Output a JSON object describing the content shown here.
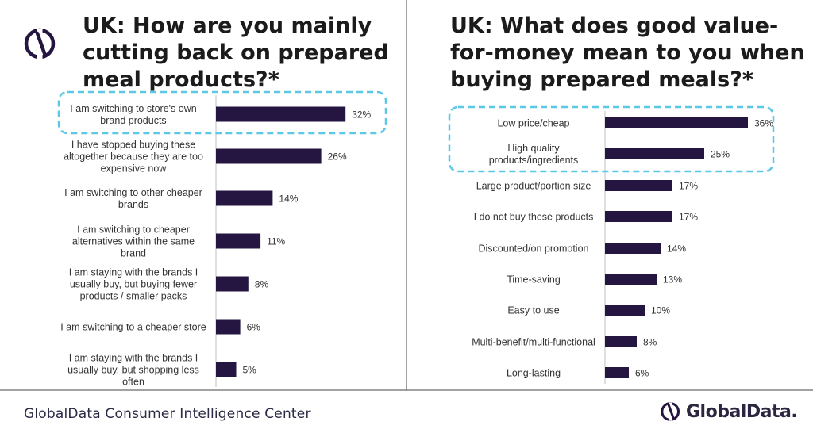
{
  "left_title": "UK: How are you mainly cutting back on prepared meal products?*",
  "right_title": "UK: What does good value-for-money mean to you when buying prepared meals?*",
  "footer": "GlobalData Consumer Intelligence Center",
  "brand": "GlobalData.",
  "colors": {
    "bar": "#241640",
    "highlight": "#5bc8e6",
    "divider": "#444444"
  },
  "icons": {
    "top_logo": "globaldata-logo-icon",
    "footer_logo": "globaldata-logo-icon"
  },
  "chart_data": [
    {
      "type": "bar",
      "orientation": "horizontal",
      "title": "UK: How are you mainly cutting back on prepared meal products?*",
      "categories": [
        "I am switching to store's own brand products",
        "I have stopped buying these altogether because they are too expensive now",
        "I am switching to other cheaper brands",
        "I am switching to cheaper alternatives within the same brand",
        "I am staying with the brands I usually buy, but buying fewer products / smaller packs",
        "I am switching to a cheaper store",
        "I am staying with the brands I usually buy, but shopping less often"
      ],
      "category_lines": [
        [
          "I am switching to store's own",
          "brand products"
        ],
        [
          "I have stopped buying these",
          "altogether because they are too",
          "expensive now"
        ],
        [
          "I am switching to other cheaper",
          "brands"
        ],
        [
          "I am switching to cheaper",
          "alternatives within the same",
          "brand"
        ],
        [
          "I am staying with the brands I",
          "usually buy, but buying fewer",
          "products / smaller packs"
        ],
        [
          "I am switching to a cheaper store"
        ],
        [
          "I am staying with the brands I",
          "usually buy, but shopping less",
          "often"
        ]
      ],
      "values": [
        32,
        26,
        14,
        11,
        8,
        6,
        5
      ],
      "value_labels": [
        "32%",
        "26%",
        "14%",
        "11%",
        "8%",
        "6%",
        "5%"
      ],
      "unit": "%",
      "highlighted": [
        0
      ]
    },
    {
      "type": "bar",
      "orientation": "horizontal",
      "title": "UK: What does good value-for-money mean to you when buying prepared meals?*",
      "categories": [
        "Low price/cheap",
        "High quality products/ingredients",
        "Large product/portion size",
        "I do not buy these products",
        "Discounted/on promotion",
        "Time-saving",
        "Easy to use",
        "Multi-benefit/multi-functional",
        "Long-lasting"
      ],
      "category_lines": [
        [
          "Low price/cheap"
        ],
        [
          "High quality",
          "products/ingredients"
        ],
        [
          "Large product/portion size"
        ],
        [
          "I do not buy these products"
        ],
        [
          "Discounted/on promotion"
        ],
        [
          "Time-saving"
        ],
        [
          "Easy to use"
        ],
        [
          "Multi-benefit/multi-functional"
        ],
        [
          "Long-lasting"
        ]
      ],
      "values": [
        36,
        25,
        17,
        17,
        14,
        13,
        10,
        8,
        6
      ],
      "value_labels": [
        "36%",
        "25%",
        "17%",
        "17%",
        "14%",
        "13%",
        "10%",
        "8%",
        "6%"
      ],
      "unit": "%",
      "highlighted": [
        0,
        1
      ]
    }
  ]
}
